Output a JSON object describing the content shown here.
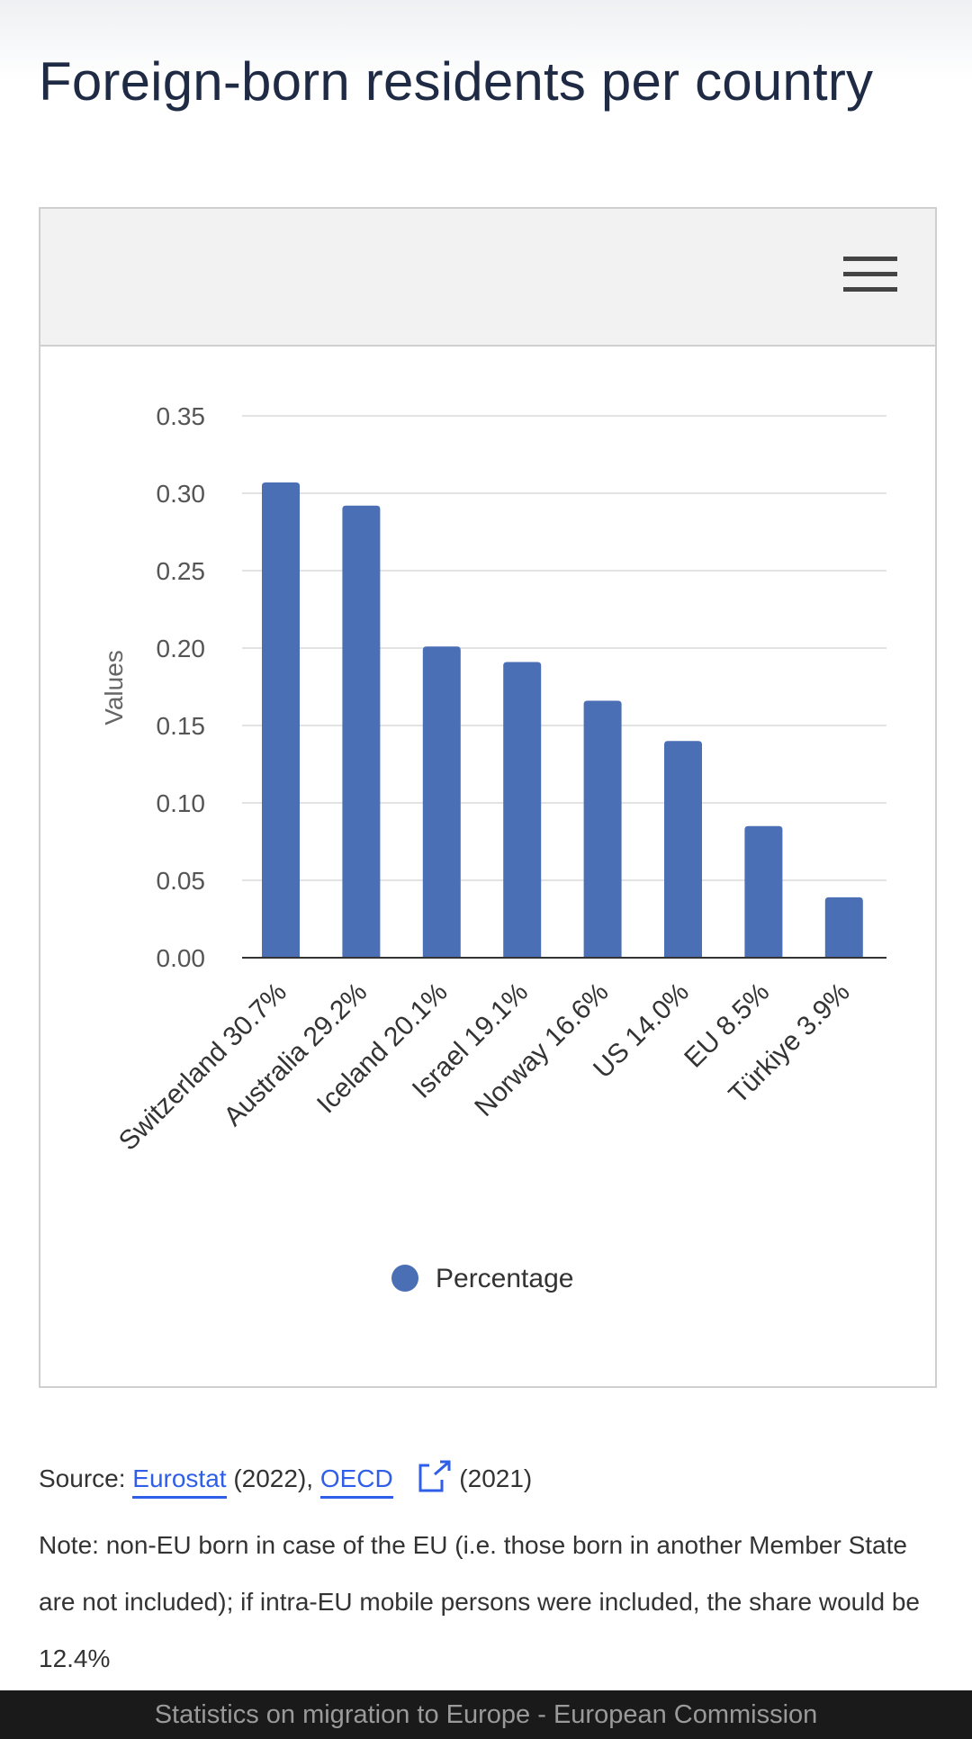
{
  "page": {
    "title": "Foreign-born residents per country"
  },
  "chart_menu": {
    "icon": "hamburger-menu-icon"
  },
  "chart_data": {
    "type": "bar",
    "categories": [
      "Switzerland 30.7%",
      "Australia 29.2%",
      "Iceland 20.1%",
      "Israel 19.1%",
      "Norway 16.6%",
      "US 14.0%",
      "EU 8.5%",
      "Türkiye 3.9%"
    ],
    "values": [
      0.307,
      0.292,
      0.201,
      0.191,
      0.166,
      0.14,
      0.085,
      0.039
    ],
    "ylabel": "Values",
    "xlabel": "",
    "ylim": [
      0,
      0.35
    ],
    "yticks": [
      "0.00",
      "0.05",
      "0.10",
      "0.15",
      "0.20",
      "0.25",
      "0.30",
      "0.35"
    ],
    "grid": true,
    "legend": {
      "entries": [
        "Percentage"
      ],
      "placement": "bottom-center"
    },
    "series_color": "#4a6fb5"
  },
  "source": {
    "prefix": "Source: ",
    "link1": "Eurostat",
    "year1": " (2022), ",
    "link2": "OECD",
    "year2": " (2021)"
  },
  "note": "Note: non-EU born in case of the EU (i.e. those born in another Member State are not included); if intra-EU mobile persons were included, the share would be 12.4%",
  "footer": "Statistics on migration to Europe - European Commission"
}
